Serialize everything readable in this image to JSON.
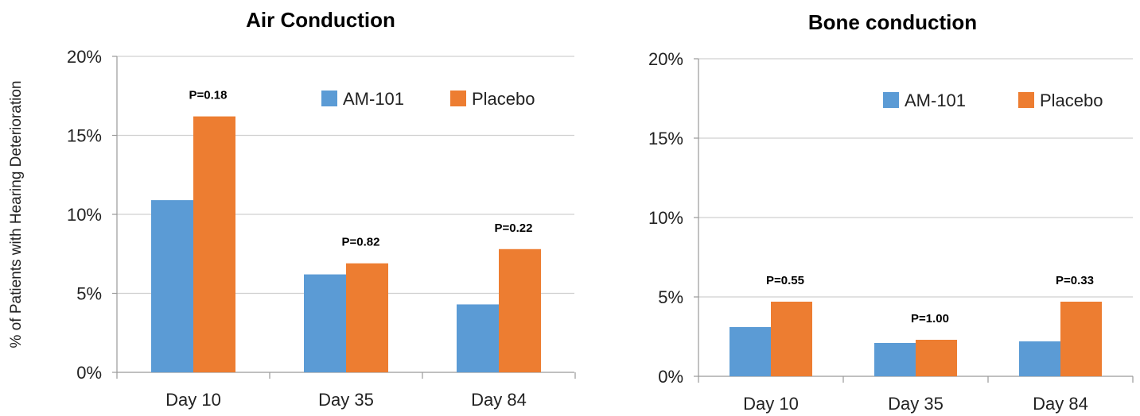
{
  "figure": {
    "ylabel": "% of Patients with Hearing Deterioration"
  },
  "colors": {
    "am101": "#5b9bd5",
    "placebo": "#ed7d31",
    "grid": "#d0d0d0",
    "axis": "#9a9a9a",
    "text": "#222222"
  },
  "chart_data": [
    {
      "type": "bar",
      "title": "Air Conduction",
      "xlabel": "",
      "ylabel": "% of Patients with Hearing Deterioration",
      "categories": [
        "Day 10",
        "Day 35",
        "Day 84"
      ],
      "series": [
        {
          "name": "AM-101",
          "values": [
            10.9,
            6.2,
            4.3
          ]
        },
        {
          "name": "Placebo",
          "values": [
            16.2,
            6.9,
            7.8
          ]
        }
      ],
      "annotations": [
        "P=0.18",
        "P=0.82",
        "P=0.22"
      ],
      "ylim": [
        0,
        20
      ],
      "yticks": [
        0,
        5,
        10,
        15,
        20
      ],
      "ytick_labels": [
        "0%",
        "5%",
        "10%",
        "15%",
        "20%"
      ],
      "grid": true,
      "legend": "top-right"
    },
    {
      "type": "bar",
      "title": "Bone conduction",
      "xlabel": "",
      "ylabel": "",
      "categories": [
        "Day 10",
        "Day 35",
        "Day 84"
      ],
      "series": [
        {
          "name": "AM-101",
          "values": [
            3.1,
            2.1,
            2.2
          ]
        },
        {
          "name": "Placebo",
          "values": [
            4.7,
            2.3,
            4.7
          ]
        }
      ],
      "annotations": [
        "P=0.55",
        "P=1.00",
        "P=0.33"
      ],
      "ylim": [
        0,
        20
      ],
      "yticks": [
        0,
        5,
        10,
        15,
        20
      ],
      "ytick_labels": [
        "0%",
        "5%",
        "10%",
        "15%",
        "20%"
      ],
      "grid": true,
      "legend": "top-right"
    }
  ]
}
